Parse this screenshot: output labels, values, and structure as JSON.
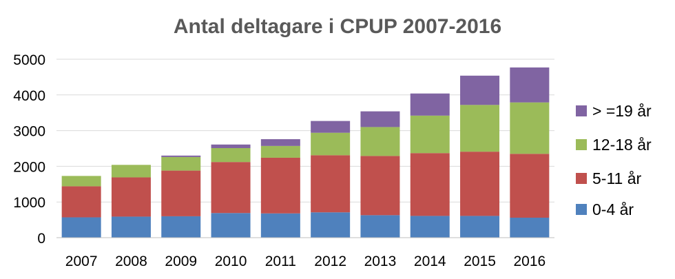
{
  "chart_data": {
    "type": "bar",
    "stacked": true,
    "title": "Antal deltagare i CPUP 2007-2016",
    "xlabel": "",
    "ylabel": "",
    "categories": [
      "2007",
      "2008",
      "2009",
      "2010",
      "2011",
      "2012",
      "2013",
      "2014",
      "2015",
      "2016"
    ],
    "ylim": [
      0,
      5000
    ],
    "yticks": [
      0,
      1000,
      2000,
      3000,
      4000,
      5000
    ],
    "grid": true,
    "legend_position": "right",
    "series": [
      {
        "name": "0-4 år",
        "color": "#4f81bd",
        "values": [
          570,
          590,
          600,
          690,
          680,
          710,
          630,
          610,
          610,
          560
        ]
      },
      {
        "name": "5-11 år",
        "color": "#c0504d",
        "values": [
          870,
          1100,
          1280,
          1430,
          1560,
          1600,
          1660,
          1760,
          1800,
          1790
        ]
      },
      {
        "name": "12-18 år",
        "color": "#9bbb59",
        "values": [
          290,
          350,
          380,
          390,
          330,
          630,
          810,
          1050,
          1310,
          1440
        ]
      },
      {
        "name": "> =19 år",
        "color": "#8064a2",
        "values": [
          0,
          0,
          40,
          100,
          190,
          330,
          440,
          620,
          820,
          980
        ]
      }
    ]
  }
}
